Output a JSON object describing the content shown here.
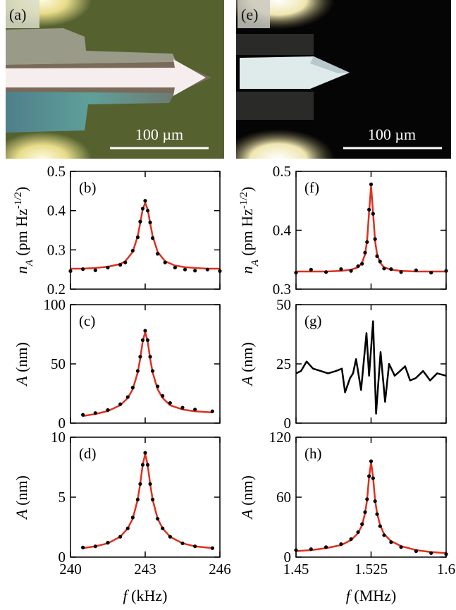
{
  "images": [
    {
      "label": "(a)",
      "scale_bar": "100 µm"
    },
    {
      "label": "(e)",
      "scale_bar": "100 µm"
    }
  ],
  "chart_data": [
    {
      "type": "scatter",
      "label": "(b)",
      "ylabel": [
        {
          "text": "n",
          "style": "italic"
        },
        {
          "text": "A",
          "style": "sub"
        },
        {
          "text": " (pm Hz",
          "style": "normal"
        },
        {
          "text": "-1/2",
          "style": "sup"
        },
        {
          "text": ")",
          "style": "normal"
        }
      ],
      "xlim": [
        240,
        246
      ],
      "xticks": [
        240,
        243,
        246
      ],
      "show_xtick_labels": false,
      "ylim": [
        0.2,
        0.5
      ],
      "yticks": [
        0.2,
        0.3,
        0.4,
        0.5
      ],
      "series": [
        {
          "style": "line",
          "color": "#e0301e",
          "x": [
            240,
            240.5,
            241,
            241.5,
            242,
            242.2,
            242.5,
            242.7,
            242.8,
            242.9,
            243,
            243.1,
            243.2,
            243.3,
            243.5,
            243.8,
            244.2,
            244.6,
            245,
            245.5,
            246
          ],
          "values": [
            0.252,
            0.252,
            0.254,
            0.257,
            0.264,
            0.271,
            0.295,
            0.335,
            0.368,
            0.403,
            0.42,
            0.403,
            0.368,
            0.335,
            0.295,
            0.271,
            0.26,
            0.256,
            0.254,
            0.252,
            0.252
          ]
        },
        {
          "style": "dots",
          "color": "#000000",
          "x": [
            240,
            240.5,
            241,
            241.5,
            242,
            242.2,
            242.5,
            242.7,
            242.8,
            242.9,
            243,
            243.1,
            243.2,
            243.3,
            243.5,
            243.8,
            244.2,
            244.6,
            245,
            245.5,
            246
          ],
          "values": [
            0.246,
            0.251,
            0.248,
            0.255,
            0.262,
            0.268,
            0.298,
            0.332,
            0.372,
            0.405,
            0.425,
            0.4,
            0.37,
            0.33,
            0.29,
            0.268,
            0.255,
            0.25,
            0.247,
            0.25,
            0.246
          ]
        }
      ]
    },
    {
      "type": "scatter",
      "label": "(c)",
      "ylabel": [
        {
          "text": "A",
          "style": "italic"
        },
        {
          "text": " (nm)",
          "style": "normal"
        }
      ],
      "xlim": [
        240,
        246
      ],
      "xticks": [
        240,
        243,
        246
      ],
      "show_xtick_labels": false,
      "ylim": [
        0,
        100
      ],
      "yticks": [
        0,
        50,
        100
      ],
      "series": [
        {
          "style": "line",
          "color": "#e0301e",
          "x": [
            240.5,
            241,
            241.5,
            242,
            242.3,
            242.5,
            242.7,
            242.8,
            242.9,
            243,
            243.1,
            243.2,
            243.3,
            243.5,
            243.7,
            244,
            244.5,
            245,
            245.7
          ],
          "values": [
            6,
            7.7,
            10.2,
            15.1,
            21.2,
            28.6,
            42.7,
            54.4,
            68.9,
            77,
            68.9,
            54.4,
            42.7,
            28.6,
            21.2,
            15.1,
            11.5,
            10,
            9
          ]
        },
        {
          "style": "dots",
          "color": "#000000",
          "x": [
            240.5,
            241,
            241.5,
            242,
            242.3,
            242.5,
            242.7,
            242.8,
            242.9,
            243,
            243.1,
            243.2,
            243.3,
            243.5,
            243.7,
            244,
            244.5,
            245,
            245.7
          ],
          "values": [
            7,
            8.5,
            11,
            16,
            22,
            30,
            44,
            56,
            70,
            78,
            70,
            56,
            44,
            31,
            23,
            17,
            13,
            11.5,
            10
          ]
        }
      ]
    },
    {
      "type": "scatter",
      "label": "(d)",
      "ylabel": [
        {
          "text": "A",
          "style": "italic"
        },
        {
          "text": " (nm)",
          "style": "normal"
        }
      ],
      "xlabel": [
        {
          "text": "f",
          "style": "italic"
        },
        {
          "text": " (kHz)",
          "style": "normal"
        }
      ],
      "xlim": [
        240,
        246
      ],
      "xticks": [
        240,
        243,
        246
      ],
      "show_xtick_labels": true,
      "ylim": [
        0,
        10
      ],
      "yticks": [
        0,
        5,
        10
      ],
      "series": [
        {
          "style": "line",
          "color": "#e0301e",
          "x": [
            240.5,
            241,
            241.5,
            242,
            242.3,
            242.5,
            242.7,
            242.8,
            242.9,
            243,
            243.1,
            243.2,
            243.3,
            243.5,
            243.7,
            244,
            244.5,
            245,
            245.7
          ],
          "values": [
            0.75,
            0.9,
            1.15,
            1.7,
            2.4,
            3.2,
            4.8,
            6.1,
            7.7,
            8.6,
            7.7,
            6.1,
            4.8,
            3.2,
            2.4,
            1.7,
            1.15,
            0.9,
            0.75
          ]
        },
        {
          "style": "dots",
          "color": "#000000",
          "x": [
            240.5,
            241,
            241.5,
            242,
            242.3,
            242.5,
            242.7,
            242.8,
            242.9,
            243,
            243.1,
            243.2,
            243.3,
            243.5,
            243.7,
            244,
            244.5,
            245,
            245.7
          ],
          "values": [
            0.8,
            0.9,
            1.2,
            1.7,
            2.4,
            3.3,
            4.8,
            6.1,
            7.7,
            8.7,
            7.7,
            6.1,
            4.8,
            3.2,
            2.4,
            1.7,
            1.15,
            0.9,
            0.75
          ]
        }
      ]
    },
    {
      "type": "scatter",
      "label": "(f)",
      "ylabel": [
        {
          "text": "n",
          "style": "italic"
        },
        {
          "text": "A",
          "style": "sub"
        },
        {
          "text": " (pm Hz",
          "style": "normal"
        },
        {
          "text": "-1/2",
          "style": "sup"
        },
        {
          "text": ")",
          "style": "normal"
        }
      ],
      "xlim": [
        1.45,
        1.6
      ],
      "xticks": [
        1.45,
        1.525,
        1.6
      ],
      "show_xtick_labels": false,
      "ylim": [
        0.3,
        0.5
      ],
      "yticks": [
        0.3,
        0.4,
        0.5
      ],
      "series": [
        {
          "style": "line",
          "color": "#e0301e",
          "x": [
            1.45,
            1.465,
            1.48,
            1.495,
            1.505,
            1.512,
            1.516,
            1.519,
            1.521,
            1.523,
            1.525,
            1.527,
            1.529,
            1.531,
            1.534,
            1.538,
            1.545,
            1.555,
            1.57,
            1.585,
            1.6
          ],
          "values": [
            0.33,
            0.33,
            0.33,
            0.331,
            0.333,
            0.337,
            0.345,
            0.359,
            0.382,
            0.43,
            0.475,
            0.43,
            0.382,
            0.359,
            0.345,
            0.337,
            0.333,
            0.331,
            0.33,
            0.33,
            0.33
          ]
        },
        {
          "style": "dots",
          "color": "#000000",
          "x": [
            1.45,
            1.465,
            1.48,
            1.495,
            1.505,
            1.512,
            1.516,
            1.519,
            1.521,
            1.523,
            1.525,
            1.527,
            1.529,
            1.531,
            1.534,
            1.538,
            1.545,
            1.555,
            1.57,
            1.585,
            1.6
          ],
          "values": [
            0.328,
            0.333,
            0.329,
            0.334,
            0.331,
            0.339,
            0.343,
            0.362,
            0.38,
            0.435,
            0.478,
            0.428,
            0.385,
            0.356,
            0.347,
            0.335,
            0.334,
            0.329,
            0.332,
            0.328,
            0.331
          ]
        }
      ]
    },
    {
      "type": "scatter",
      "label": "(g)",
      "ylabel": [
        {
          "text": "A",
          "style": "italic"
        },
        {
          "text": " (nm)",
          "style": "normal"
        }
      ],
      "xlim": [
        1.45,
        1.6
      ],
      "xticks": [
        1.45,
        1.525,
        1.6
      ],
      "show_xtick_labels": false,
      "ylim": [
        0,
        50
      ],
      "yticks": [
        0,
        25,
        50
      ],
      "series": [
        {
          "style": "line",
          "color": "#000000",
          "x": [
            1.45,
            1.455,
            1.4606,
            1.467,
            1.4746,
            1.482,
            1.49,
            1.4958,
            1.499,
            1.504,
            1.507,
            1.51,
            1.515,
            1.5204,
            1.523,
            1.527,
            1.53,
            1.5345,
            1.539,
            1.543,
            1.5486,
            1.554,
            1.559,
            1.564,
            1.5697,
            1.577,
            1.584,
            1.591,
            1.6
          ],
          "values": [
            21,
            22,
            26,
            23,
            22,
            21,
            22,
            23,
            13,
            19,
            21,
            27,
            14,
            38,
            20,
            43,
            4,
            30,
            9,
            25,
            20,
            22,
            24,
            18,
            19,
            22,
            18,
            21,
            20
          ]
        }
      ]
    },
    {
      "type": "scatter",
      "label": "(h)",
      "ylabel": [
        {
          "text": "A",
          "style": "italic"
        },
        {
          "text": " (nm)",
          "style": "normal"
        }
      ],
      "xlabel": [
        {
          "text": "f",
          "style": "italic"
        },
        {
          "text": " (MHz)",
          "style": "normal"
        }
      ],
      "xlim": [
        1.45,
        1.6
      ],
      "xticks": [
        1.45,
        1.525,
        1.6
      ],
      "show_xtick_labels": true,
      "ylim": [
        0,
        120
      ],
      "yticks": [
        0,
        60,
        120
      ],
      "series": [
        {
          "style": "line",
          "color": "#e0301e",
          "x": [
            1.45,
            1.465,
            1.48,
            1.495,
            1.505,
            1.512,
            1.516,
            1.519,
            1.521,
            1.523,
            1.525,
            1.527,
            1.529,
            1.531,
            1.534,
            1.538,
            1.545,
            1.555,
            1.57,
            1.585,
            1.6
          ],
          "values": [
            6,
            7,
            9,
            12,
            17,
            24,
            32,
            44,
            57,
            80,
            95,
            80,
            57,
            44,
            32,
            23,
            16,
            11,
            7,
            5,
            4
          ]
        },
        {
          "style": "dots",
          "color": "#000000",
          "x": [
            1.45,
            1.465,
            1.48,
            1.495,
            1.505,
            1.512,
            1.516,
            1.519,
            1.521,
            1.523,
            1.525,
            1.527,
            1.529,
            1.531,
            1.534,
            1.538,
            1.545,
            1.555,
            1.57,
            1.585,
            1.6
          ],
          "values": [
            7,
            8,
            10,
            13,
            18,
            25,
            33,
            45,
            58,
            81,
            96,
            79,
            56,
            43,
            31,
            22,
            15,
            10,
            6,
            4,
            3
          ]
        }
      ]
    }
  ]
}
